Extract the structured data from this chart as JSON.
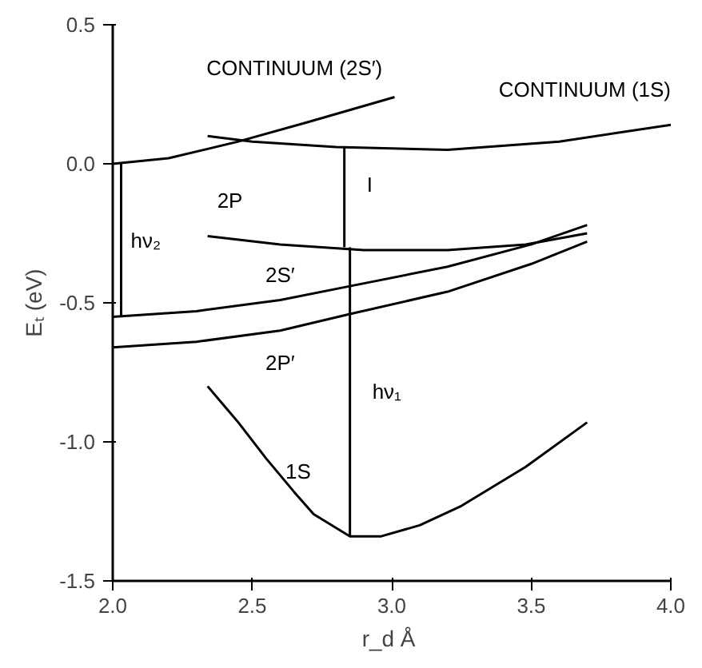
{
  "chart_data": {
    "type": "line",
    "xlabel": "r_d  Å",
    "ylabel": "Eₜ (eV)",
    "xlim": [
      2.0,
      4.0
    ],
    "ylim": [
      -1.5,
      0.5
    ],
    "xticks": [
      {
        "value": 2,
        "label": "2.0"
      },
      2.5,
      {
        "value": 3,
        "label": "3.0"
      },
      3.5,
      {
        "value": 4,
        "label": "4.0"
      }
    ],
    "yticks": [
      0.5,
      {
        "value": 0,
        "label": "0.0"
      },
      -0.5,
      {
        "value": -1,
        "label": "-1.0"
      },
      -1.5
    ],
    "grid": false,
    "marker": "none",
    "line_style": "solid",
    "series": [
      {
        "name": "CONTINUUM  (2S′)",
        "color": "#000000",
        "x": [
          2.0,
          2.2,
          2.45,
          2.7,
          3.01
        ],
        "values": [
          0.0,
          0.02,
          0.08,
          0.15,
          0.24
        ]
      },
      {
        "name": "CONTINUUM (1S)",
        "color": "#000000",
        "x": [
          2.34,
          2.5,
          2.8,
          3.2,
          3.6,
          4.0
        ],
        "values": [
          0.1,
          0.08,
          0.06,
          0.05,
          0.08,
          0.14
        ]
      },
      {
        "name": "2P",
        "color": "#000000",
        "x": [
          2.34,
          2.6,
          2.9,
          3.2,
          3.48,
          3.7
        ],
        "values": [
          -0.26,
          -0.29,
          -0.31,
          -0.31,
          -0.29,
          -0.25
        ]
      },
      {
        "name": "2S′",
        "color": "#000000",
        "x": [
          2.0,
          2.3,
          2.6,
          2.85,
          3.2,
          3.5,
          3.7
        ],
        "values": [
          -0.55,
          -0.53,
          -0.49,
          -0.44,
          -0.37,
          -0.29,
          -0.22
        ]
      },
      {
        "name": "2P′",
        "color": "#000000",
        "x": [
          2.0,
          2.3,
          2.6,
          2.85,
          3.2,
          3.5,
          3.7
        ],
        "values": [
          -0.66,
          -0.64,
          -0.6,
          -0.54,
          -0.46,
          -0.36,
          -0.28
        ]
      },
      {
        "name": "1S",
        "color": "#000000",
        "x": [
          2.34,
          2.45,
          2.55,
          2.65,
          2.72,
          2.85,
          2.96,
          3.1,
          3.25,
          3.48,
          3.7
        ],
        "values": [
          -0.8,
          -0.93,
          -1.06,
          -1.18,
          -1.26,
          -1.34,
          -1.34,
          -1.3,
          -1.23,
          -1.09,
          -0.93
        ]
      },
      {
        "name": "hν₂",
        "color": "#000000",
        "x": [
          2.03,
          2.03
        ],
        "values": [
          -0.55,
          0.0
        ]
      },
      {
        "name": "I",
        "color": "#000000",
        "x": [
          2.83,
          2.83
        ],
        "values": [
          -0.3,
          0.06
        ]
      },
      {
        "name": "hν₁",
        "color": "#000000",
        "x": [
          2.85,
          2.85
        ],
        "values": [
          -1.34,
          -0.3
        ]
      }
    ]
  }
}
